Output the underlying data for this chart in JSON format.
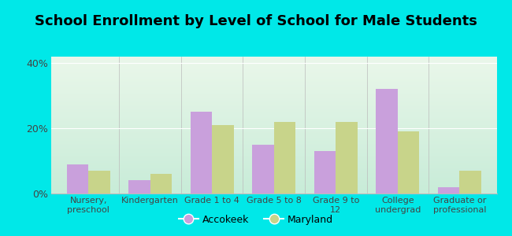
{
  "title": "School Enrollment by Level of School for Male Students",
  "categories": [
    "Nursery,\npreschool",
    "Kindergarten",
    "Grade 1 to 4",
    "Grade 5 to 8",
    "Grade 9 to\n12",
    "College\nundergrad",
    "Graduate or\nprofessional"
  ],
  "accokeek": [
    9,
    4,
    25,
    15,
    13,
    32,
    2
  ],
  "maryland": [
    7,
    6,
    21,
    22,
    22,
    19,
    7
  ],
  "accokeek_color": "#c9a0dc",
  "maryland_color": "#c8d48a",
  "background_color": "#00e8e8",
  "yticks": [
    0,
    20,
    40
  ],
  "ylim": [
    0,
    42
  ],
  "bar_width": 0.35,
  "title_fontsize": 13,
  "tick_fontsize": 8,
  "legend_labels": [
    "Accokeek",
    "Maryland"
  ],
  "gradient_top": "#eaf7ea",
  "gradient_bottom": "#c8ecd8"
}
